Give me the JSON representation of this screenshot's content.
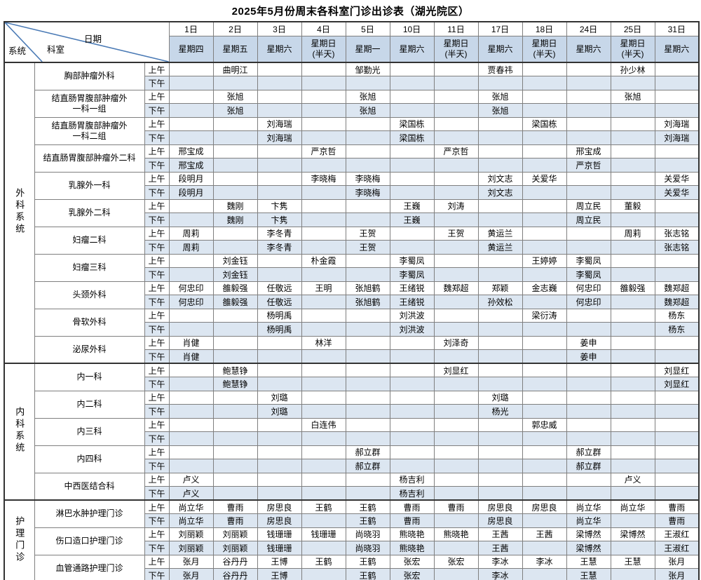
{
  "title": "2025年5月份周末各科室门诊出诊表（湖光院区）",
  "corner": {
    "date_label": "日期",
    "dept_label": "科室",
    "system_label": "系统"
  },
  "periods": {
    "am": "上午",
    "pm": "下午"
  },
  "columns": [
    {
      "date": "1日",
      "weekday": "星期四"
    },
    {
      "date": "2日",
      "weekday": "星期五"
    },
    {
      "date": "3日",
      "weekday": "星期六"
    },
    {
      "date": "4日",
      "weekday": "星期日\n(半天)"
    },
    {
      "date": "5日",
      "weekday": "星期一"
    },
    {
      "date": "10日",
      "weekday": "星期六"
    },
    {
      "date": "11日",
      "weekday": "星期日\n(半天)"
    },
    {
      "date": "17日",
      "weekday": "星期六"
    },
    {
      "date": "18日",
      "weekday": "星期日\n(半天)"
    },
    {
      "date": "24日",
      "weekday": "星期六"
    },
    {
      "date": "25日",
      "weekday": "星期日\n(半天)"
    },
    {
      "date": "31日",
      "weekday": "星期六"
    }
  ],
  "groups": [
    {
      "name": "外科系统",
      "departments": [
        {
          "name": "胸部肿瘤外科",
          "am": [
            "",
            "曲明江",
            "",
            "",
            "邹勤光",
            "",
            "",
            "贾春祎",
            "",
            "",
            "孙少林",
            ""
          ],
          "pm": [
            "",
            "",
            "",
            "",
            "",
            "",
            "",
            "",
            "",
            "",
            "",
            ""
          ]
        },
        {
          "name": "结直肠胃腹部肿瘤外\n一科一组",
          "am": [
            "",
            "张旭",
            "",
            "",
            "张旭",
            "",
            "",
            "张旭",
            "",
            "",
            "张旭",
            ""
          ],
          "pm": [
            "",
            "张旭",
            "",
            "",
            "张旭",
            "",
            "",
            "张旭",
            "",
            "",
            "",
            ""
          ]
        },
        {
          "name": "结直肠胃腹部肿瘤外\n一科二组",
          "am": [
            "",
            "",
            "刘海瑞",
            "",
            "",
            "梁国栋",
            "",
            "",
            "梁国栋",
            "",
            "",
            "刘海瑞"
          ],
          "pm": [
            "",
            "",
            "刘海瑞",
            "",
            "",
            "梁国栋",
            "",
            "",
            "",
            "",
            "",
            "刘海瑞"
          ]
        },
        {
          "name": "结直肠胃腹部肿瘤外二科",
          "am": [
            "邢宝成",
            "",
            "",
            "严京哲",
            "",
            "",
            "严京哲",
            "",
            "",
            "邢宝成",
            "",
            ""
          ],
          "pm": [
            "邢宝成",
            "",
            "",
            "",
            "",
            "",
            "",
            "",
            "",
            "严京哲",
            "",
            ""
          ]
        },
        {
          "name": "乳腺外一科",
          "am": [
            "段明月",
            "",
            "",
            "李晓梅",
            "李晓梅",
            "",
            "",
            "刘文志",
            "关爱华",
            "",
            "",
            "关爱华"
          ],
          "pm": [
            "段明月",
            "",
            "",
            "",
            "李晓梅",
            "",
            "",
            "刘文志",
            "",
            "",
            "",
            "关爱华"
          ]
        },
        {
          "name": "乳腺外二科",
          "am": [
            "",
            "魏刚",
            "卞隽",
            "",
            "",
            "王巍",
            "刘涛",
            "",
            "",
            "周立民",
            "董毅",
            ""
          ],
          "pm": [
            "",
            "魏刚",
            "卞隽",
            "",
            "",
            "王巍",
            "",
            "",
            "",
            "周立民",
            "",
            ""
          ]
        },
        {
          "name": "妇瘤二科",
          "am": [
            "周莉",
            "",
            "李冬青",
            "",
            "王贺",
            "",
            "王贺",
            "黄运兰",
            "",
            "",
            "周莉",
            "张志铭"
          ],
          "pm": [
            "周莉",
            "",
            "李冬青",
            "",
            "王贺",
            "",
            "",
            "黄运兰",
            "",
            "",
            "",
            "张志铭"
          ]
        },
        {
          "name": "妇瘤三科",
          "am": [
            "",
            "刘金钰",
            "",
            "朴金霞",
            "",
            "李蜀凤",
            "",
            "",
            "王婷婷",
            "李蜀凤",
            "",
            ""
          ],
          "pm": [
            "",
            "刘金钰",
            "",
            "",
            "",
            "李蜀凤",
            "",
            "",
            "",
            "李蜀凤",
            "",
            ""
          ]
        },
        {
          "name": "头颈外科",
          "am": [
            "何忠印",
            "雒毅强",
            "任敬远",
            "王明",
            "张旭鹤",
            "王绪锐",
            "魏郑超",
            "郑颖",
            "金志巍",
            "何忠印",
            "雒毅强",
            "魏郑超"
          ],
          "pm": [
            "何忠印",
            "雒毅强",
            "任敬远",
            "",
            "张旭鹤",
            "王绪锐",
            "",
            "孙效松",
            "",
            "何忠印",
            "",
            "魏郑超"
          ]
        },
        {
          "name": "骨软外科",
          "am": [
            "",
            "",
            "杨明禹",
            "",
            "",
            "刘洪波",
            "",
            "",
            "梁衍涛",
            "",
            "",
            "杨东"
          ],
          "pm": [
            "",
            "",
            "杨明禹",
            "",
            "",
            "刘洪波",
            "",
            "",
            "",
            "",
            "",
            "杨东"
          ]
        },
        {
          "name": "泌尿外科",
          "am": [
            "肖健",
            "",
            "",
            "林洋",
            "",
            "",
            "刘泽奇",
            "",
            "",
            "姜申",
            "",
            ""
          ],
          "pm": [
            "肖健",
            "",
            "",
            "",
            "",
            "",
            "",
            "",
            "",
            "姜申",
            "",
            ""
          ]
        }
      ]
    },
    {
      "name": "内科系统",
      "departments": [
        {
          "name": "内一科",
          "am": [
            "",
            "鲍慧铮",
            "",
            "",
            "",
            "",
            "刘显红",
            "",
            "",
            "",
            "",
            "刘显红"
          ],
          "pm": [
            "",
            "鲍慧铮",
            "",
            "",
            "",
            "",
            "",
            "",
            "",
            "",
            "",
            "刘显红"
          ]
        },
        {
          "name": "内二科",
          "am": [
            "",
            "",
            "刘璐",
            "",
            "",
            "",
            "",
            "刘璐",
            "",
            "",
            "",
            ""
          ],
          "pm": [
            "",
            "",
            "刘璐",
            "",
            "",
            "",
            "",
            "杨光",
            "",
            "",
            "",
            ""
          ]
        },
        {
          "name": "内三科",
          "am": [
            "",
            "",
            "",
            "白连伟",
            "",
            "",
            "",
            "",
            "郭忠威",
            "",
            "",
            ""
          ],
          "pm": [
            "",
            "",
            "",
            "",
            "",
            "",
            "",
            "",
            "",
            "",
            "",
            ""
          ]
        },
        {
          "name": "内四科",
          "am": [
            "",
            "",
            "",
            "",
            "郝立群",
            "",
            "",
            "",
            "",
            "郝立群",
            "",
            ""
          ],
          "pm": [
            "",
            "",
            "",
            "",
            "郝立群",
            "",
            "",
            "",
            "",
            "郝立群",
            "",
            ""
          ]
        },
        {
          "name": "中西医结合科",
          "am": [
            "卢义",
            "",
            "",
            "",
            "",
            "杨吉利",
            "",
            "",
            "",
            "",
            "卢义",
            ""
          ],
          "pm": [
            "卢义",
            "",
            "",
            "",
            "",
            "杨吉利",
            "",
            "",
            "",
            "",
            "",
            ""
          ]
        }
      ]
    },
    {
      "name": "护理门诊",
      "departments": [
        {
          "name": "淋巴水肿护理门诊",
          "am": [
            "尚立华",
            "曹雨",
            "房思良",
            "王鹤",
            "王鹤",
            "曹雨",
            "曹雨",
            "房思良",
            "房思良",
            "尚立华",
            "尚立华",
            "曹雨"
          ],
          "pm": [
            "尚立华",
            "曹雨",
            "房思良",
            "",
            "王鹤",
            "曹雨",
            "",
            "房思良",
            "",
            "尚立华",
            "",
            "曹雨"
          ]
        },
        {
          "name": "伤口造口护理门诊",
          "am": [
            "刘丽颖",
            "刘丽颖",
            "钱珊珊",
            "钱珊珊",
            "尚晓羽",
            "熊晓艳",
            "熊晓艳",
            "王茜",
            "王茜",
            "梁博然",
            "梁博然",
            "王淑红"
          ],
          "pm": [
            "刘丽颖",
            "刘丽颖",
            "钱珊珊",
            "",
            "尚晓羽",
            "熊晓艳",
            "",
            "王茜",
            "",
            "梁博然",
            "",
            "王淑红"
          ]
        },
        {
          "name": "血管通路护理门诊",
          "am": [
            "张月",
            "谷丹丹",
            "王博",
            "王鹤",
            "王鹤",
            "张宏",
            "张宏",
            "李冰",
            "李冰",
            "王慧",
            "王慧",
            "张月"
          ],
          "pm": [
            "张月",
            "谷丹丹",
            "王博",
            "",
            "王鹤",
            "张宏",
            "",
            "李冰",
            "",
            "王慧",
            "",
            "张月"
          ]
        }
      ]
    }
  ],
  "colors": {
    "header_bg": "#c7d7e9",
    "pm_row_bg": "#dce6f1",
    "diagonal_line": "#4a7ab5",
    "grid_border": "#7f7f7f",
    "strong_border": "#333333"
  }
}
